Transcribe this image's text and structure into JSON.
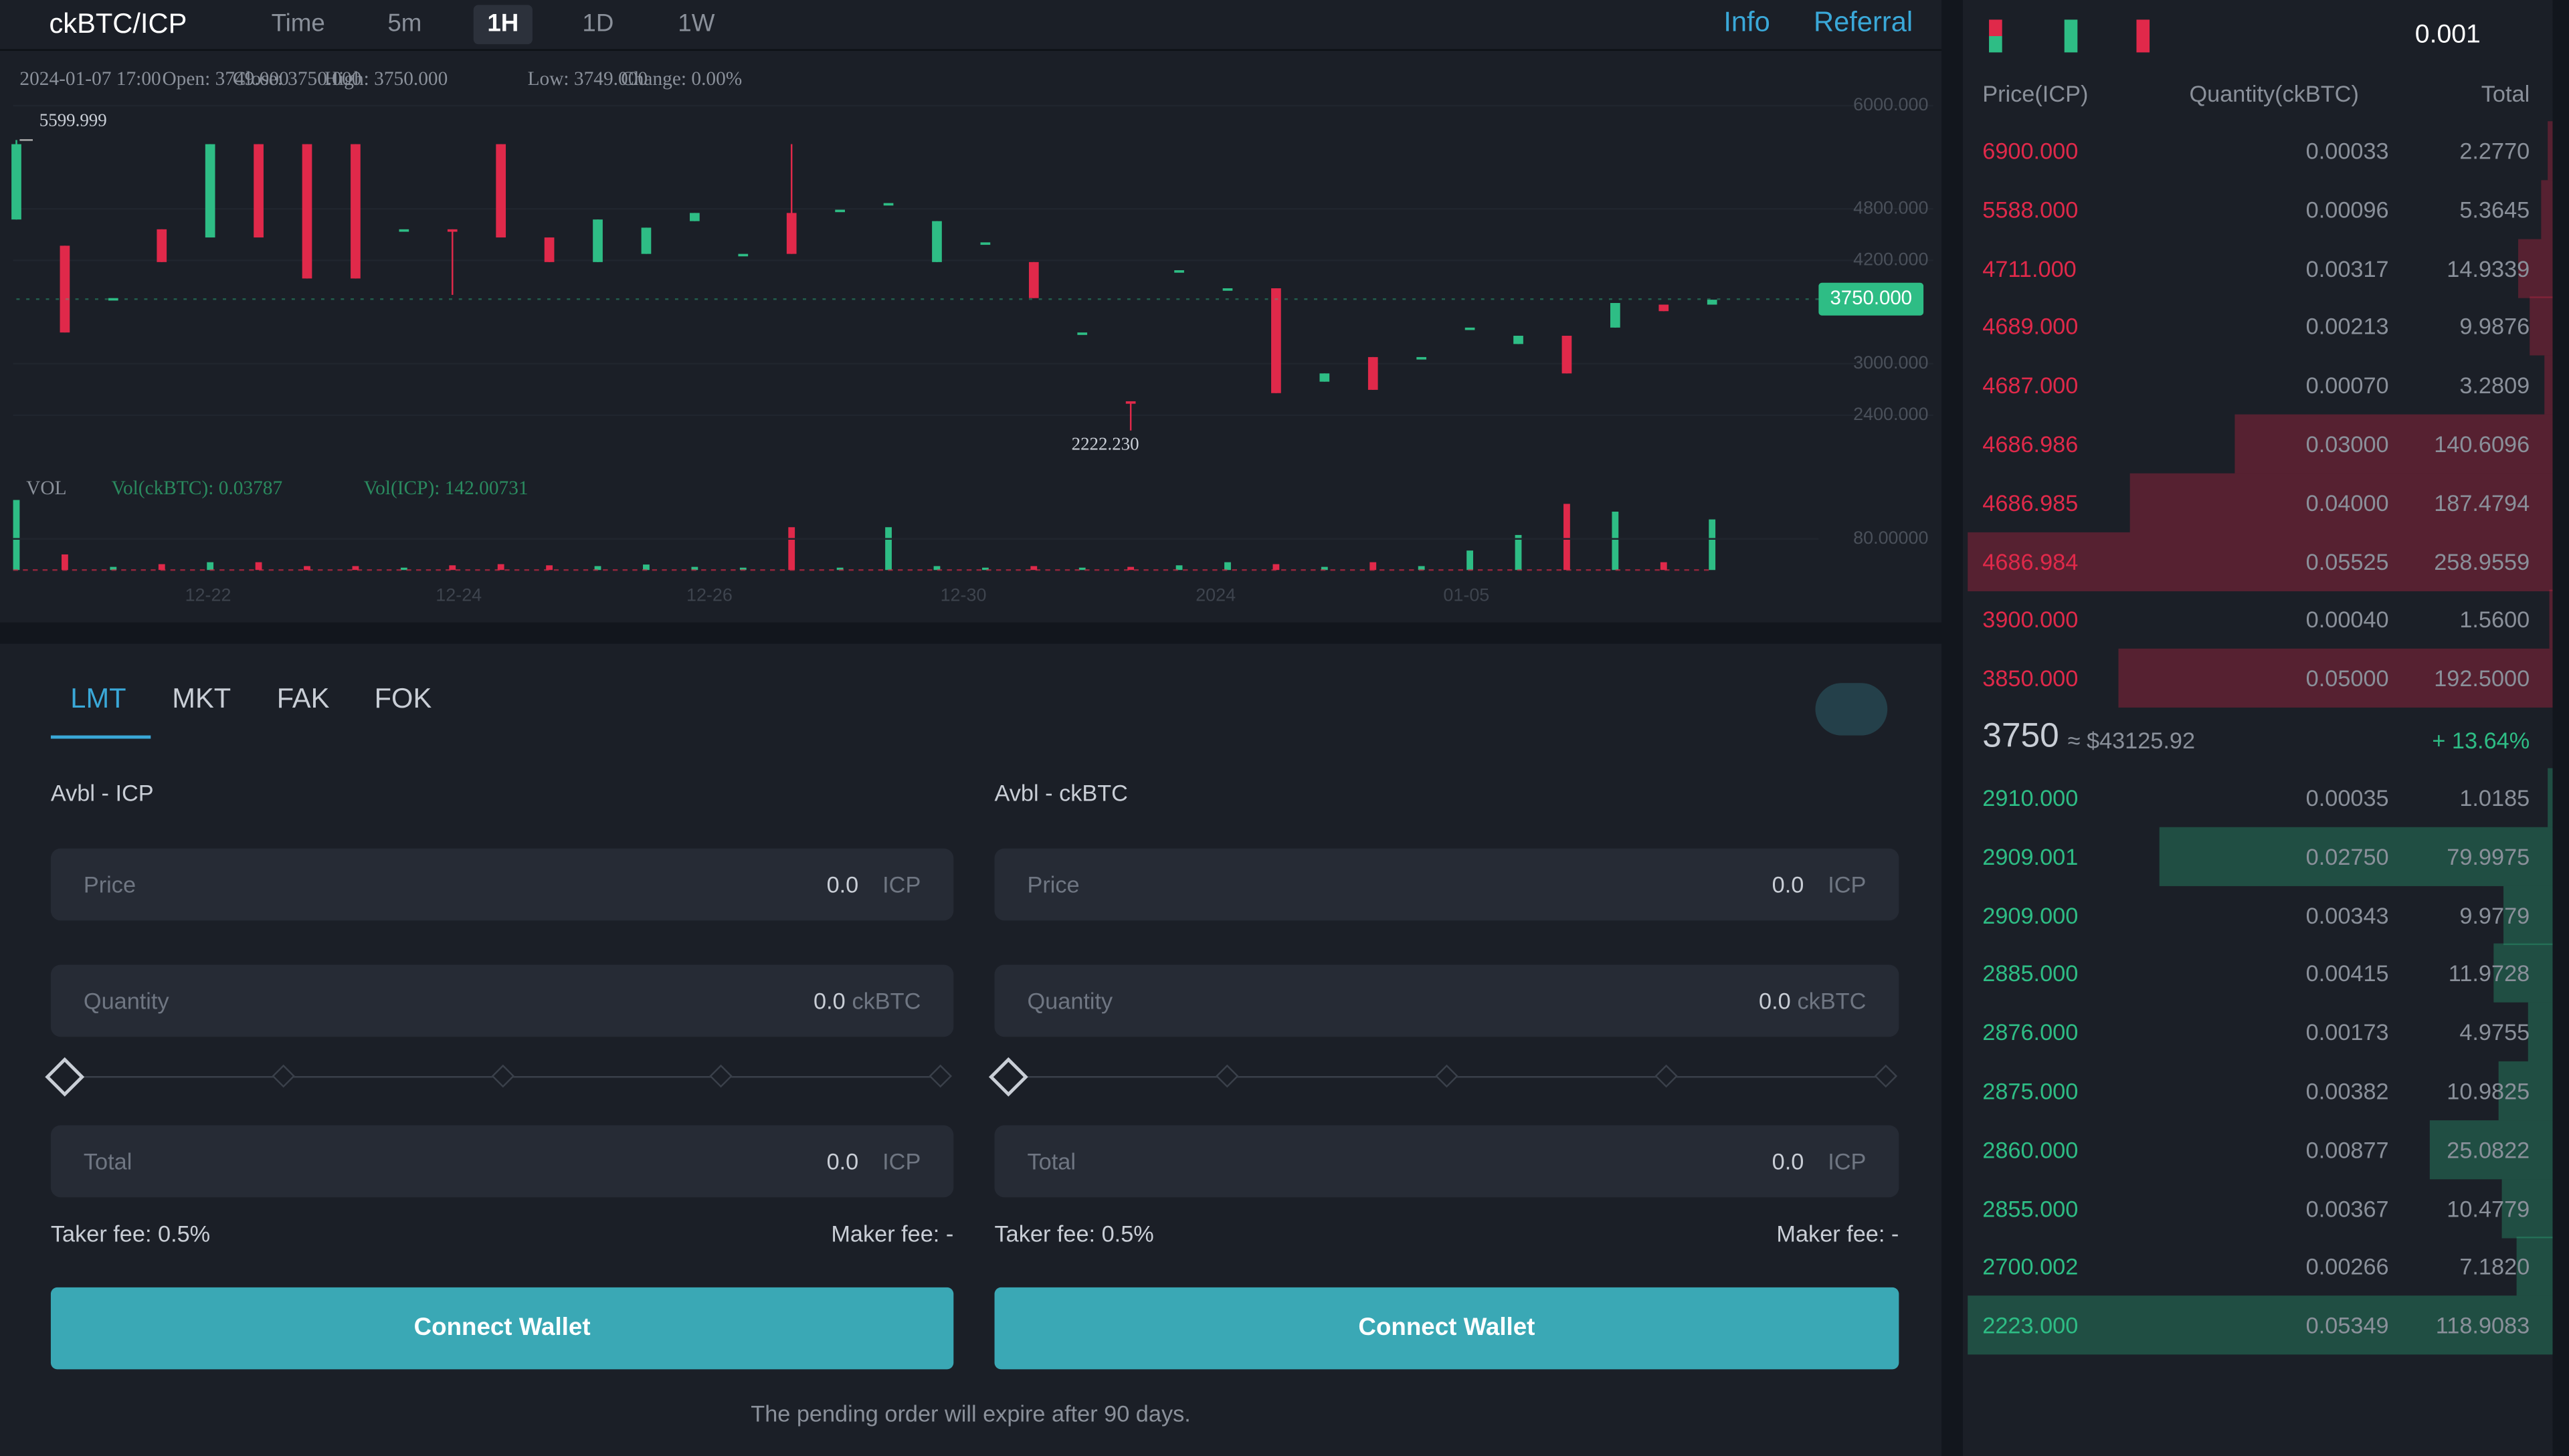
{
  "header": {
    "pair": "ckBTC/ICP",
    "intervals": [
      "Time",
      "5m",
      "1H",
      "1D",
      "1W"
    ],
    "links": [
      "Info",
      "Referral"
    ]
  },
  "price_chart": {
    "type": "candlestick",
    "info": [
      "2024-01-07 17:00",
      "Open: 3749.000",
      "Close: 3750.000",
      "High: 3750.000",
      "Low: 3749.000",
      "Change: 0.00%"
    ],
    "ylim": [
      1800,
      6200
    ],
    "yticks": [
      {
        "value": 2400,
        "label": "2400.000"
      },
      {
        "value": 3000,
        "label": "3000.000"
      },
      {
        "value": 4200,
        "label": "4200.000"
      },
      {
        "value": 4800,
        "label": "4800.000"
      },
      {
        "value": 6000,
        "label": "6000.000"
      }
    ],
    "max_label": "5599.999",
    "min_label": "2222.230",
    "last_price": {
      "value": 3750,
      "label": "3750.000"
    },
    "up_color": "#2ebd85",
    "down_color": "#e0294a",
    "candles": [
      {
        "open": 4676,
        "high": 5600,
        "low": 4676,
        "close": 5552
      },
      {
        "open": 4371,
        "high": 4371,
        "low": 3362,
        "close": 3362
      },
      {
        "open": 3762,
        "high": 3762,
        "low": 3762,
        "close": 3762
      },
      {
        "open": 4562,
        "high": 4562,
        "low": 4181,
        "close": 4181
      },
      {
        "open": 4467,
        "high": 5552,
        "low": 4467,
        "close": 5552
      },
      {
        "open": 5552,
        "high": 5552,
        "low": 4467,
        "close": 4467
      },
      {
        "open": 5552,
        "high": 5552,
        "low": 3990,
        "close": 3990
      },
      {
        "open": 5552,
        "high": 5552,
        "low": 3990,
        "close": 3990
      },
      {
        "open": 4562,
        "high": 4562,
        "low": 4562,
        "close": 4562
      },
      {
        "open": 4562,
        "high": 4562,
        "low": 3800,
        "close": 4540
      },
      {
        "open": 5552,
        "high": 5552,
        "low": 4467,
        "close": 4467
      },
      {
        "open": 4467,
        "high": 4467,
        "low": 4181,
        "close": 4181
      },
      {
        "open": 4181,
        "high": 4676,
        "low": 4181,
        "close": 4676
      },
      {
        "open": 4276,
        "high": 4581,
        "low": 4276,
        "close": 4581
      },
      {
        "open": 4657,
        "high": 4752,
        "low": 4657,
        "close": 4752
      },
      {
        "open": 4276,
        "high": 4276,
        "low": 4276,
        "close": 4276
      },
      {
        "open": 4752,
        "high": 5552,
        "low": 4276,
        "close": 4276
      },
      {
        "open": 4790,
        "high": 4790,
        "low": 4790,
        "close": 4790
      },
      {
        "open": 4867,
        "high": 4867,
        "low": 4867,
        "close": 4867
      },
      {
        "open": 4181,
        "high": 4657,
        "low": 4181,
        "close": 4657
      },
      {
        "open": 4410,
        "high": 4410,
        "low": 4410,
        "close": 4410
      },
      {
        "open": 4181,
        "high": 4181,
        "low": 3762,
        "close": 3762
      },
      {
        "open": 3362,
        "high": 3362,
        "low": 3362,
        "close": 3362
      },
      {
        "open": 2562,
        "high": 2562,
        "low": 2222,
        "close": 2540
      },
      {
        "open": 4086,
        "high": 4086,
        "low": 4086,
        "close": 4086
      },
      {
        "open": 3876,
        "high": 3876,
        "low": 3876,
        "close": 3876
      },
      {
        "open": 3876,
        "high": 3876,
        "low": 2657,
        "close": 2657
      },
      {
        "open": 2790,
        "high": 2886,
        "low": 2790,
        "close": 2886
      },
      {
        "open": 3076,
        "high": 3076,
        "low": 2695,
        "close": 2695
      },
      {
        "open": 3076,
        "high": 3076,
        "low": 3076,
        "close": 3076
      },
      {
        "open": 3419,
        "high": 3419,
        "low": 3419,
        "close": 3419
      },
      {
        "open": 3228,
        "high": 3324,
        "low": 3228,
        "close": 3324
      },
      {
        "open": 3324,
        "high": 3324,
        "low": 2886,
        "close": 2886
      },
      {
        "open": 3419,
        "high": 3705,
        "low": 3419,
        "close": 3705
      },
      {
        "open": 3686,
        "high": 3686,
        "low": 3610,
        "close": 3610
      },
      {
        "open": 3686,
        "high": 3743,
        "low": 3686,
        "close": 3743
      }
    ],
    "volume_title": "VOL",
    "volume_info": [
      "Vol(ckBTC): 0.03787",
      "Vol(ICP): 142.00731"
    ],
    "volume_ylim": [
      0,
      200
    ],
    "volume_yticks": [
      {
        "value": 80,
        "label": "80.00000"
      }
    ],
    "volumes": [
      180,
      40,
      8,
      15,
      20,
      20,
      10,
      10,
      6,
      12,
      15,
      12,
      10,
      14,
      8,
      6,
      110,
      6,
      110,
      10,
      6,
      10,
      6,
      8,
      12,
      20,
      15,
      8,
      20,
      10,
      50,
      90,
      170,
      150,
      20,
      130
    ],
    "xticks": [
      "12-22",
      "12-24",
      "12-26",
      "12-30",
      "2024",
      "01-05"
    ]
  },
  "order_form": {
    "tabs": [
      "LMT",
      "MKT",
      "FAK",
      "FOK"
    ],
    "sides": [
      {
        "available": "Avbl - ICP",
        "fields": [
          {
            "label": "Price",
            "value": "0.0",
            "unit": "ICP"
          },
          {
            "label": "Quantity",
            "value": "0.0",
            "unit": "ckBTC"
          },
          {
            "label": "Total",
            "value": "0.0",
            "unit": "ICP"
          }
        ],
        "taker_fee": "Taker fee: 0.5%",
        "maker_fee": "Maker fee: -",
        "button": "Connect Wallet"
      },
      {
        "available": "Avbl - ckBTC",
        "fields": [
          {
            "label": "Price",
            "value": "0.0",
            "unit": "ICP"
          },
          {
            "label": "Quantity",
            "value": "0.0",
            "unit": "ckBTC"
          },
          {
            "label": "Total",
            "value": "0.0",
            "unit": "ICP"
          }
        ],
        "taker_fee": "Taker fee: 0.5%",
        "maker_fee": "Maker fee: -",
        "button": "Connect Wallet"
      }
    ],
    "note": "The pending order will expire after 90 days."
  },
  "order_book": {
    "precision": "0.001",
    "columns": [
      "Price(ICP)",
      "Quantity(ckBTC)",
      "Total"
    ],
    "asks": [
      {
        "price": "6900.000",
        "quantity": "0.00033",
        "total": "2.2770"
      },
      {
        "price": "5588.000",
        "quantity": "0.00096",
        "total": "5.3645"
      },
      {
        "price": "4711.000",
        "quantity": "0.00317",
        "total": "14.9339"
      },
      {
        "price": "4689.000",
        "quantity": "0.00213",
        "total": "9.9876"
      },
      {
        "price": "4687.000",
        "quantity": "0.00070",
        "total": "3.2809"
      },
      {
        "price": "4686.986",
        "quantity": "0.03000",
        "total": "140.6096"
      },
      {
        "price": "4686.985",
        "quantity": "0.04000",
        "total": "187.4794"
      },
      {
        "price": "4686.984",
        "quantity": "0.05525",
        "total": "258.9559"
      },
      {
        "price": "3900.000",
        "quantity": "0.00040",
        "total": "1.5600"
      },
      {
        "price": "3850.000",
        "quantity": "0.05000",
        "total": "192.5000"
      }
    ],
    "last": {
      "price": "3750",
      "usd": "≈ $43125.92",
      "change": "+ 13.64%"
    },
    "bids": [
      {
        "price": "2910.000",
        "quantity": "0.00035",
        "total": "1.0185"
      },
      {
        "price": "2909.001",
        "quantity": "0.02750",
        "total": "79.9975"
      },
      {
        "price": "2909.000",
        "quantity": "0.00343",
        "total": "9.9779"
      },
      {
        "price": "2885.000",
        "quantity": "0.00415",
        "total": "11.9728"
      },
      {
        "price": "2876.000",
        "quantity": "0.00173",
        "total": "4.9755"
      },
      {
        "price": "2875.000",
        "quantity": "0.00382",
        "total": "10.9825"
      },
      {
        "price": "2860.000",
        "quantity": "0.00877",
        "total": "25.0822"
      },
      {
        "price": "2855.000",
        "quantity": "0.00367",
        "total": "10.4779"
      },
      {
        "price": "2700.002",
        "quantity": "0.00266",
        "total": "7.1820"
      },
      {
        "price": "2223.000",
        "quantity": "0.05349",
        "total": "118.9083"
      }
    ]
  }
}
